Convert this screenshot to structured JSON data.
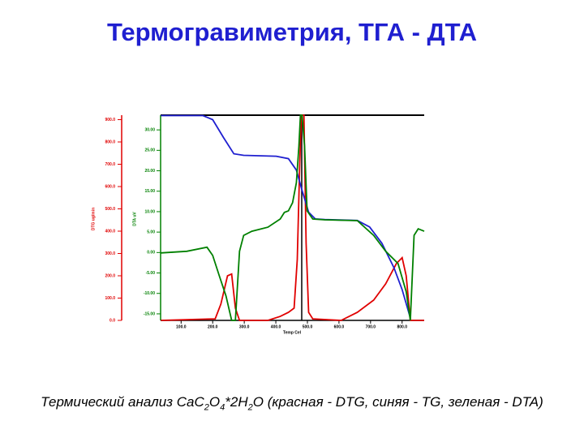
{
  "title": "Термогравиметрия, ТГА - ДТА",
  "caption": [
    "Термический анализ CaC",
    "2",
    "O",
    "4",
    "*2H",
    "2",
    "O (красная - DTG, синяя - TG, зеленая - DTA)"
  ],
  "chart_data": {
    "type": "line",
    "xlabel": "Temp Cel",
    "ylabel": "DTG ug/min",
    "y2label": "DTA uV",
    "xlim": [
      35,
      870
    ],
    "ylim": [
      0,
      920
    ],
    "y2lim": [
      -16.6,
      33.6
    ],
    "xticks": [
      {
        "value": 100,
        "label": "100.0"
      },
      {
        "value": 200,
        "label": "200.0"
      },
      {
        "value": 300,
        "label": "300.0"
      },
      {
        "value": 400,
        "label": "400.0"
      },
      {
        "value": 500,
        "label": "500.0"
      },
      {
        "value": 600,
        "label": "600.0"
      },
      {
        "value": 700,
        "label": "700.0"
      },
      {
        "value": 800,
        "label": "800.0"
      }
    ],
    "yticks": [
      {
        "value": 0,
        "label": "0.0"
      },
      {
        "value": 100,
        "label": "100.0"
      },
      {
        "value": 200,
        "label": "200.0"
      },
      {
        "value": 300,
        "label": "300.0"
      },
      {
        "value": 400,
        "label": "400.0"
      },
      {
        "value": 500,
        "label": "500.0"
      },
      {
        "value": 600,
        "label": "600.0"
      },
      {
        "value": 700,
        "label": "700.0"
      },
      {
        "value": 800,
        "label": "800.0"
      },
      {
        "value": 900,
        "label": "900.0"
      }
    ],
    "y2ticks": [
      {
        "value": -15,
        "label": "-15.00"
      },
      {
        "value": -10,
        "label": "-10.00"
      },
      {
        "value": -5,
        "label": "-5.00"
      },
      {
        "value": 0,
        "label": "0.00"
      },
      {
        "value": 5,
        "label": "5.00"
      },
      {
        "value": 10,
        "label": "10.00"
      },
      {
        "value": 15,
        "label": "15.00"
      },
      {
        "value": 20,
        "label": "20.00"
      },
      {
        "value": 25,
        "label": "25.00"
      },
      {
        "value": 30,
        "label": "30.00"
      }
    ],
    "grid": false,
    "series": [
      {
        "name": "DTG",
        "color": "#e00000",
        "axis": "y",
        "x": [
          36,
          208,
          226,
          247,
          260,
          272,
          285,
          375,
          414,
          440,
          458,
          468,
          476,
          481,
          489,
          496,
          504,
          517,
          607,
          658,
          710,
          748,
          782,
          800,
          813,
          826,
          870
        ],
        "values": [
          0,
          7,
          73,
          200,
          208,
          55,
          0,
          0,
          18,
          36,
          55,
          273,
          711,
          920,
          920,
          346,
          36,
          7,
          0,
          36,
          91,
          164,
          255,
          281,
          200,
          0,
          0
        ]
      },
      {
        "name": "TG",
        "color": "#1f1fd0",
        "axis": "y",
        "x": [
          36,
          169,
          200,
          234,
          267,
          298,
          401,
          440,
          465,
          483,
          504,
          525,
          555,
          658,
          697,
          736,
          774,
          800,
          826
        ],
        "values": [
          918,
          918,
          900,
          820,
          747,
          740,
          736,
          725,
          674,
          583,
          485,
          455,
          452,
          448,
          419,
          346,
          237,
          138,
          11
        ]
      },
      {
        "name": "DTA",
        "color": "#008000",
        "axis": "y2",
        "x": [
          36,
          118,
          182,
          200,
          221,
          242,
          260,
          272,
          285,
          298,
          324,
          375,
          414,
          427,
          440,
          453,
          465,
          473,
          478,
          483,
          491,
          499,
          517,
          555,
          658,
          710,
          748,
          787,
          813,
          826,
          838,
          851,
          870
        ],
        "values": [
          -0.1,
          0.3,
          1.3,
          -0.7,
          -5.7,
          -10.6,
          -16.6,
          -16.6,
          0.3,
          4.2,
          5.2,
          6.2,
          8.2,
          9.8,
          10.2,
          12.2,
          17.1,
          26.0,
          33.6,
          33.6,
          26.0,
          10.2,
          8.2,
          8.0,
          7.8,
          4.2,
          0.3,
          -2.7,
          -9.6,
          -16.6,
          4.2,
          5.8,
          5.2
        ]
      }
    ]
  }
}
